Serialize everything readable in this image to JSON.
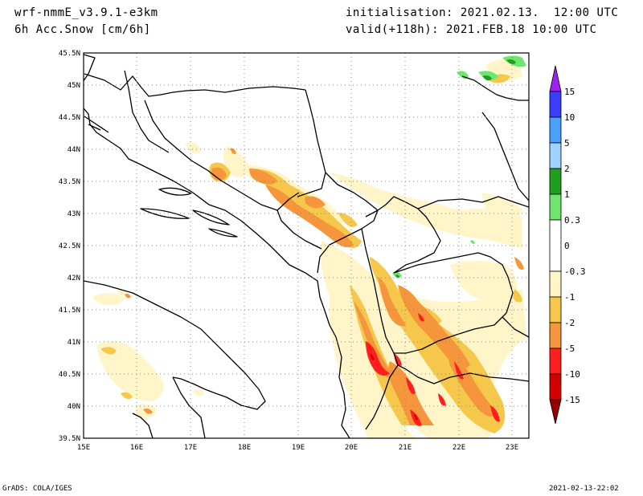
{
  "header": {
    "model": "wrf-nmmE_v3.9.1-e3km",
    "field": "6h Acc.Snow [cm/6h]",
    "init": "initialisation: 2021.02.13.  12:00 UTC",
    "valid": "valid(+118h): 2021.FEB.18 10:00 UTC"
  },
  "map": {
    "lat_ticks": [
      "45.5N",
      "45N",
      "44.5N",
      "44N",
      "43.5N",
      "43N",
      "42.5N",
      "42N",
      "41.5N",
      "41N",
      "40.5N",
      "40N",
      "39.5N"
    ],
    "lon_ticks": [
      "15E",
      "16E",
      "17E",
      "18E",
      "19E",
      "20E",
      "21E",
      "22E",
      "23E"
    ],
    "extent": {
      "lon": [
        15,
        23.3
      ],
      "lat": [
        39.5,
        45.5
      ]
    },
    "grid": "dotted",
    "land_fill": "#ffffff"
  },
  "colorbar": {
    "labels": [
      "15",
      "10",
      "5",
      "2",
      "1",
      "0.3",
      "0",
      "-0.3",
      "-1",
      "-2",
      "-5",
      "-10",
      "-15"
    ],
    "colors": [
      "#a020f0",
      "#3c3cff",
      "#4aa0ff",
      "#a0d2ff",
      "#1f9f1f",
      "#6ee66e",
      "#ffffff",
      "#fff5c8",
      "#f5c84b",
      "#f5963c",
      "#ff1e1e",
      "#d20000",
      "#960000"
    ]
  },
  "footer": {
    "left": "GrADS: COLA/IGES",
    "right": "2021-02-13-22:02"
  },
  "colors": {
    "light_yellow": "#fff5c8",
    "yellow": "#f5c84b",
    "orange": "#f5963c",
    "red": "#ff1e1e",
    "dark_red": "#d20000",
    "green": "#1f9f1f",
    "light_green": "#6ee66e"
  }
}
